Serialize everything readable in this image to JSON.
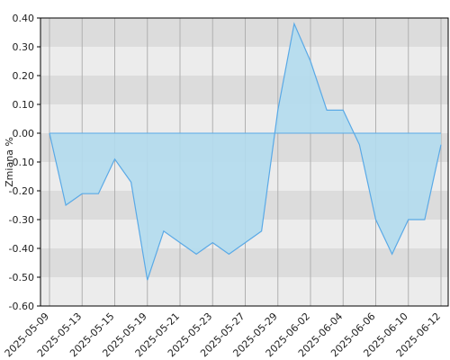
{
  "chart_data": {
    "type": "area",
    "y_label": "Zmiana %",
    "categories": [
      "2025-05-09",
      null,
      "2025-05-13",
      null,
      "2025-05-15",
      null,
      "2025-05-19",
      null,
      "2025-05-21",
      null,
      "2025-05-23",
      null,
      "2025-05-27",
      null,
      "2025-05-29",
      null,
      "2025-06-02",
      null,
      "2025-06-04",
      null,
      "2025-06-06",
      null,
      "2025-06-10",
      null,
      "2025-06-12"
    ],
    "values": [
      0,
      -0.25,
      -0.21,
      -0.21,
      -0.09,
      -0.17,
      -0.51,
      -0.34,
      -0.38,
      -0.42,
      -0.38,
      -0.42,
      -0.38,
      -0.34,
      0.08,
      0.38,
      0.25,
      0.08,
      0.08,
      -0.04,
      -0.3,
      -0.42,
      -0.3,
      -0.3,
      -0.04
    ],
    "color": "#5aa9e6",
    "fill": "#b3dcee",
    "ylim": [
      -0.6,
      0.4
    ],
    "yticks": [
      {
        "value": -0.6,
        "label": "-0.60"
      },
      {
        "value": -0.5,
        "label": "-0.50"
      },
      {
        "value": -0.4,
        "label": "-0.40"
      },
      {
        "value": -0.3,
        "label": "-0.30"
      },
      {
        "value": -0.2,
        "label": "-0.20"
      },
      {
        "value": -0.1,
        "label": "-0.10"
      },
      {
        "value": 0,
        "label": "0.00"
      },
      {
        "value": 0.1,
        "label": "0.10"
      },
      {
        "value": 0.2,
        "label": "0.20"
      },
      {
        "value": 0.3,
        "label": "0.30"
      },
      {
        "value": 0.4,
        "label": "0.40"
      }
    ],
    "grid": true
  }
}
